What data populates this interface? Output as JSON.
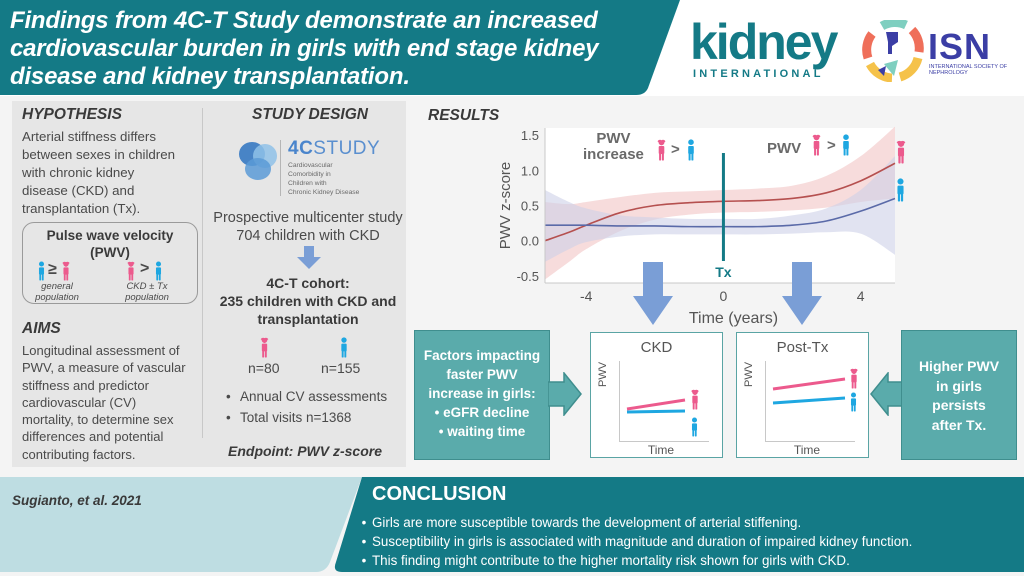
{
  "header": {
    "title": "Findings from 4C-T Study demonstrate an increased cardiovascular burden in girls with end stage kidney disease and kidney transplantation.",
    "logos": {
      "kidney_international": {
        "word": "kidney",
        "sub": "INTERNATIONAL"
      },
      "isn": {
        "word": "ISN",
        "sub": "INTERNATIONAL SOCIETY OF NEPHROLOGY"
      }
    }
  },
  "colors": {
    "teal_dark": "#147a86",
    "teal_box": "#5aabab",
    "girls_pink": "#ec5a8d",
    "boys_blue": "#1ea7e1",
    "girls_curve": "#b5504f",
    "boys_curve": "#5a6aa8",
    "arrow_blue": "#7a9ed6",
    "panel_gray": "#e6e6e6",
    "footer_light": "#bedde2"
  },
  "hypothesis": {
    "heading": "HYPOTHESIS",
    "lines": [
      "Arterial stiffness differs",
      "between sexes in children",
      "with chronic kidney",
      "disease (CKD) and",
      "transplantation (Tx)."
    ],
    "pwv_box": {
      "title_line1": "Pulse wave velocity",
      "title_line2": "(PWV)",
      "left_symbol": "≥",
      "left_label_line1": "general",
      "left_label_line2": "population",
      "right_symbol": ">",
      "right_label_line1": "CKD ± Tx",
      "right_label_line2": "population"
    }
  },
  "aims": {
    "heading": "AIMS",
    "lines": [
      "Longitudinal assessment of",
      "PWV, a measure of vascular",
      "stiffness and predictor",
      "cardiovascular (CV)",
      "mortality, to determine sex",
      "differences and potential",
      "contributing factors."
    ]
  },
  "study_design": {
    "heading": "STUDY DESIGN",
    "logo": {
      "word_bold": "4C",
      "word_rest": "STUDY",
      "sub_lines": [
        "Cardiovascular",
        "Comorbidity in",
        "Children with",
        "Chronic Kidney Disease"
      ]
    },
    "line1": "Prospective multicenter study",
    "line2": "704 children with CKD",
    "cohort_line1": "4C-T cohort:",
    "cohort_line2": "235 children with CKD and",
    "cohort_line3": "transplantation",
    "girls_n": "n=80",
    "boys_n": "n=155",
    "bullets": [
      "Annual CV assessments",
      "Total visits n=1368"
    ],
    "endpoint": "Endpoint: PWV z-score"
  },
  "results": {
    "heading": "RESULTS",
    "annotation_left_line1": "PWV",
    "annotation_left_line2": "increase",
    "annotation_right": "PWV",
    "gt_symbol": ">",
    "tx_label": "Tx"
  },
  "chart_data": {
    "type": "line",
    "title": "",
    "xlabel": "Time (years)",
    "ylabel": "PWV z-score",
    "xlim": [
      -5.2,
      5.0
    ],
    "ylim": [
      -0.6,
      1.6
    ],
    "xticks": [
      -4,
      0,
      4
    ],
    "yticks": [
      -0.5,
      0.0,
      0.5,
      1.0,
      1.5
    ],
    "ytick_labels": [
      "-0.5",
      "0.0",
      "0.5",
      "1.0",
      "1.5"
    ],
    "grid": false,
    "vertical_marker": {
      "x": 0,
      "label": "Tx"
    },
    "series": [
      {
        "name": "Girls",
        "color": "#b5504f",
        "band_color": "#f2c4c4",
        "x": [
          -5.2,
          -4.5,
          -4,
          -3,
          -2,
          -1,
          0,
          1,
          2,
          3,
          4,
          5
        ],
        "y": [
          0.0,
          0.12,
          0.22,
          0.4,
          0.5,
          0.54,
          0.56,
          0.57,
          0.6,
          0.68,
          0.85,
          1.1
        ],
        "lower": [
          -0.55,
          -0.3,
          -0.12,
          0.14,
          0.3,
          0.37,
          0.4,
          0.41,
          0.43,
          0.47,
          0.55,
          0.6
        ],
        "upper": [
          0.55,
          0.52,
          0.55,
          0.62,
          0.68,
          0.7,
          0.72,
          0.74,
          0.78,
          0.92,
          1.2,
          1.62
        ]
      },
      {
        "name": "Boys",
        "color": "#5a6aa8",
        "band_color": "#cdd1e8",
        "x": [
          -5.2,
          -4.5,
          -4,
          -3,
          -2,
          -1,
          0,
          1,
          2,
          3,
          4,
          5
        ],
        "y": [
          0.22,
          0.22,
          0.22,
          0.21,
          0.21,
          0.2,
          0.2,
          0.2,
          0.22,
          0.28,
          0.42,
          0.6
        ],
        "lower": [
          -0.3,
          -0.12,
          -0.02,
          0.06,
          0.09,
          0.09,
          0.09,
          0.09,
          0.1,
          0.12,
          0.1,
          -0.2
        ],
        "upper": [
          0.72,
          0.55,
          0.46,
          0.36,
          0.33,
          0.31,
          0.31,
          0.31,
          0.36,
          0.46,
          0.72,
          1.2
        ]
      }
    ]
  },
  "factors_box": {
    "lines": [
      "Factors impacting",
      "faster PWV",
      "increase in girls:",
      "• eGFR decline",
      "• waiting time"
    ]
  },
  "ckd_panel": {
    "title": "CKD",
    "ylabel": "PWV",
    "xlabel": "Time"
  },
  "posttx_panel": {
    "title": "Post-Tx",
    "ylabel": "PWV",
    "xlabel": "Time"
  },
  "persist_box": {
    "lines": [
      "Higher PWV",
      "in girls",
      "persists",
      "after Tx."
    ]
  },
  "footer": {
    "citation": "Sugianto, et al. 2021",
    "conclusion_title": "CONCLUSION",
    "conclusions": [
      "Girls are more susceptible towards the development of arterial stiffening.",
      "Susceptibility in girls is associated with magnitude and duration of impaired kidney function.",
      "This finding might contribute to the higher mortality risk shown for girls with CKD."
    ]
  }
}
